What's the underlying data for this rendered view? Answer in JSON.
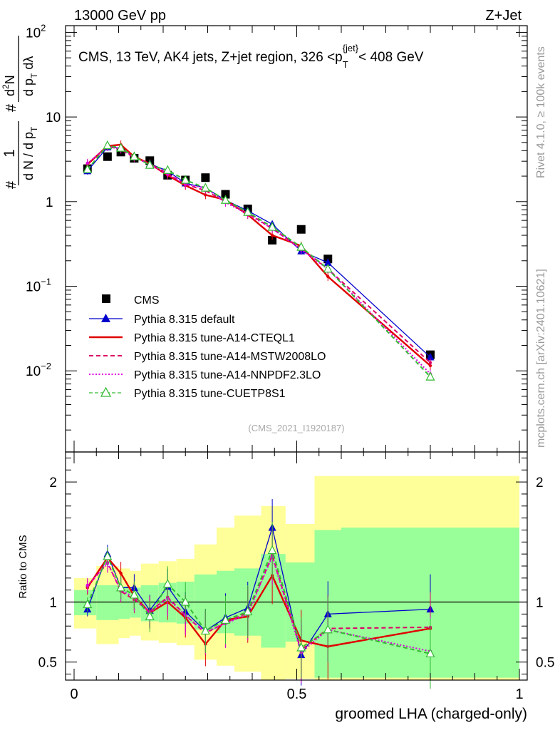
{
  "header": {
    "left": "13000 GeV pp",
    "right": "Z+Jet"
  },
  "side_labels": {
    "rivet": "Rivet 4.1.0, ≥ 100k events",
    "mcplots": "mcplots.cern.ch [arXiv:2401.10621]"
  },
  "analysis_id": "(CMS_2021_I1920187)",
  "colors": {
    "cms": "#000000",
    "default": "#0000cc",
    "ctecl1": "#e00000",
    "mstw": "#dd0066",
    "nnpdf": "#dd00dd",
    "cuetp8s1": "#33bb33",
    "band_outer": "#ffff99",
    "band_inner": "#99ff99"
  },
  "chart_data": [
    {
      "type": "scatter",
      "scale": "log",
      "title": "CMS, 13 TeV, AK4 jets, Z+jet region, 326 <p_T^{jet}< 408 GeV",
      "title_parts": {
        "main": "CMS, 13 TeV, AK4 jets, Z+jet region, 326 <p",
        "sub": "T",
        "sup": "{jet}",
        "tail": "< 408 GeV"
      },
      "ylabel": "1/(dN/dp_T) d^2N/(dp_T dλ)",
      "ylabel_parts": {
        "hash": "#",
        "one": "1",
        "den": "d N / d p",
        "den_sub": "T",
        "num_pre": "d",
        "num_sup": "2",
        "num_post": "N",
        "num_den": "d p",
        "num_den_sub": "T",
        "num_den_tail": " dλ"
      },
      "xlim": [
        0,
        1
      ],
      "ylim": [
        0.0011,
        120
      ],
      "y_ticks": [
        {
          "v": 0.01,
          "base": "10",
          "exp": "−2"
        },
        {
          "v": 0.1,
          "base": "10",
          "exp": "−1"
        },
        {
          "v": 1,
          "base": "1",
          "exp": ""
        },
        {
          "v": 10,
          "base": "10",
          "exp": ""
        },
        {
          "v": 100,
          "base": "10",
          "exp": "2"
        }
      ],
      "x": [
        0.03,
        0.075,
        0.105,
        0.135,
        0.17,
        0.21,
        0.25,
        0.295,
        0.34,
        0.39,
        0.445,
        0.51,
        0.57,
        0.8
      ],
      "series": [
        {
          "name": "CMS",
          "color": "#000000",
          "marker": "square",
          "line": "none",
          "values": [
            2.45,
            3.4,
            3.85,
            3.25,
            3.05,
            2.05,
            1.8,
            1.92,
            1.22,
            0.82,
            0.35,
            0.47,
            0.21,
            0.0155
          ]
        },
        {
          "name": "Pythia 8.315 default",
          "color": "#0000cc",
          "marker": "triangle",
          "line": "solid",
          "values": [
            2.3,
            4.4,
            4.3,
            3.4,
            2.8,
            2.3,
            1.65,
            1.45,
            1.04,
            0.78,
            0.54,
            0.26,
            0.19,
            0.0145
          ]
        },
        {
          "name": "Pythia 8.315 tune-A14-CTEQL1",
          "color": "#e00000",
          "marker": "none",
          "line": "solid-thick",
          "values": [
            2.75,
            4.55,
            4.7,
            3.4,
            2.8,
            2.05,
            1.55,
            1.2,
            1.05,
            0.7,
            0.4,
            0.3,
            0.13,
            0.0115
          ]
        },
        {
          "name": "Pythia 8.315 tune-A14-MSTW2008LO",
          "color": "#dd0066",
          "marker": "none",
          "line": "dashed",
          "values": [
            2.8,
            4.5,
            4.15,
            3.3,
            2.8,
            2.15,
            1.6,
            1.35,
            1.0,
            0.73,
            0.48,
            0.28,
            0.16,
            0.0125
          ]
        },
        {
          "name": "Pythia 8.315 tune-A14-NNPDF2.3LO",
          "color": "#dd00dd",
          "marker": "none",
          "line": "dotted",
          "values": [
            2.85,
            4.45,
            4.2,
            3.35,
            2.75,
            2.1,
            1.6,
            1.45,
            0.98,
            0.71,
            0.48,
            0.27,
            0.16,
            0.0092
          ]
        },
        {
          "name": "Pythia 8.315 tune-CUETP8S1",
          "color": "#33bb33",
          "marker": "open-triangle",
          "line": "dashed",
          "values": [
            2.4,
            4.6,
            4.3,
            3.4,
            2.7,
            2.35,
            1.8,
            1.45,
            1.04,
            0.75,
            0.5,
            0.29,
            0.16,
            0.0085
          ]
        }
      ]
    },
    {
      "type": "line",
      "ylabel": "Ratio to CMS",
      "xlabel": "groomed LHA (charged-only)",
      "xlim": [
        0,
        1
      ],
      "ylim": [
        0.35,
        2.25
      ],
      "x_ticks": [
        "0",
        "0.5",
        "1"
      ],
      "x_tick_values": [
        0,
        0.5,
        1
      ],
      "y_ticks": [
        "0.5",
        "1",
        "2"
      ],
      "y_tick_values": [
        0.5,
        1,
        2
      ],
      "reference": 1,
      "bin_edges": [
        0,
        0.05,
        0.1,
        0.125,
        0.15,
        0.19,
        0.23,
        0.27,
        0.32,
        0.36,
        0.42,
        0.475,
        0.54,
        0.6,
        1.0
      ],
      "band_inner": [
        [
          0.89,
          1.1
        ],
        [
          0.85,
          1.14
        ],
        [
          0.86,
          1.13
        ],
        [
          0.87,
          1.12
        ],
        [
          0.84,
          1.14
        ],
        [
          0.83,
          1.16
        ],
        [
          0.82,
          1.17
        ],
        [
          0.77,
          1.23
        ],
        [
          0.74,
          1.26
        ],
        [
          0.72,
          1.28
        ],
        [
          0.62,
          1.4
        ],
        [
          0.67,
          1.33
        ],
        [
          0.37,
          1.6
        ],
        [
          0.37,
          1.62
        ]
      ],
      "band_outer": [
        [
          0.78,
          1.2
        ],
        [
          0.65,
          1.3
        ],
        [
          0.7,
          1.28
        ],
        [
          0.72,
          1.26
        ],
        [
          0.68,
          1.32
        ],
        [
          0.66,
          1.34
        ],
        [
          0.64,
          1.36
        ],
        [
          0.52,
          1.48
        ],
        [
          0.47,
          1.62
        ],
        [
          0.42,
          1.72
        ],
        [
          0.32,
          1.8
        ],
        [
          0.36,
          1.65
        ],
        [
          0.32,
          2.05
        ],
        [
          0.32,
          2.05
        ]
      ],
      "x": [
        0.03,
        0.075,
        0.105,
        0.135,
        0.17,
        0.21,
        0.25,
        0.295,
        0.34,
        0.39,
        0.445,
        0.51,
        0.57,
        0.8
      ],
      "series": [
        {
          "name": "Pythia 8.315 default",
          "color": "#0000cc",
          "values": [
            0.94,
            1.4,
            1.12,
            1.12,
            0.93,
            1.13,
            0.92,
            0.76,
            0.87,
            0.95,
            1.62,
            0.56,
            0.9,
            0.94
          ]
        },
        {
          "name": "Pythia 8.315 tune-A14-CTEQL1",
          "color": "#e00000",
          "values": [
            1.12,
            1.37,
            1.24,
            1.05,
            0.91,
            1.0,
            0.87,
            0.65,
            0.85,
            0.88,
            1.22,
            0.68,
            0.63,
            0.78
          ]
        },
        {
          "name": "Pythia 8.315 tune-A14-MSTW2008LO",
          "color": "#dd0066",
          "values": [
            1.13,
            1.33,
            1.09,
            1.02,
            0.92,
            1.04,
            0.89,
            0.74,
            0.83,
            0.91,
            1.39,
            0.6,
            0.78,
            0.79
          ]
        },
        {
          "name": "Pythia 8.315 tune-A14-NNPDF2.3LO",
          "color": "#dd00dd",
          "values": [
            1.14,
            1.32,
            1.1,
            1.04,
            0.91,
            1.03,
            0.89,
            0.75,
            0.82,
            0.9,
            1.38,
            0.58,
            0.77,
            0.59
          ]
        },
        {
          "name": "Pythia 8.315 tune-CUETP8S1",
          "color": "#33bb33",
          "values": [
            0.98,
            1.38,
            1.12,
            1.06,
            0.88,
            1.15,
            1.0,
            0.76,
            0.85,
            0.92,
            1.43,
            0.62,
            0.77,
            0.57
          ]
        }
      ]
    }
  ]
}
